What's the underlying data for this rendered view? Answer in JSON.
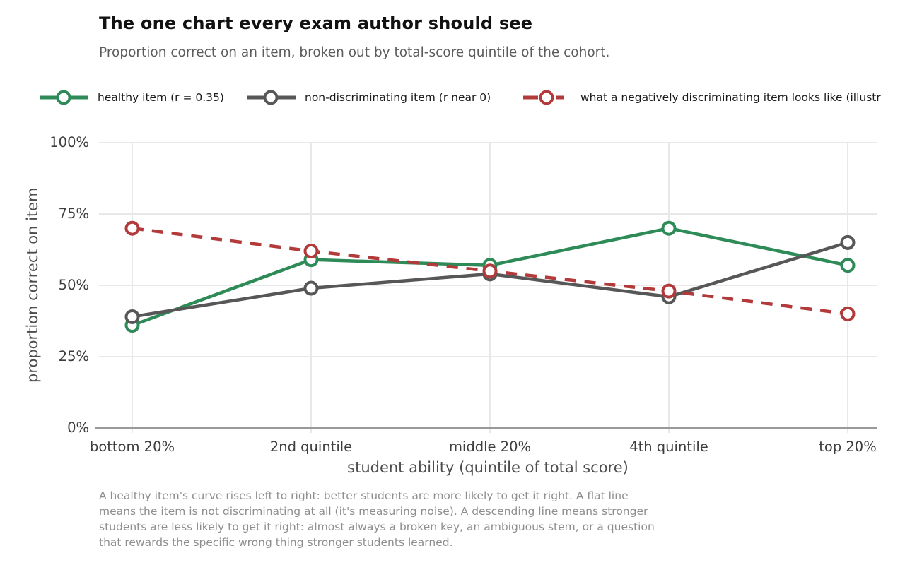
{
  "title": "The one chart every exam author should see",
  "subtitle": "Proportion correct on an item, broken out by total-score quintile of the cohort.",
  "caption": "A healthy item's curve rises left to right: better students are more likely to get it right. A flat line\nmeans the item is not discriminating at all (it's measuring noise). A descending line means stronger\nstudents are less likely to get it right: almost always a broken key, an ambiguous stem, or a question\nthat rewards the specific wrong thing stronger students learned.",
  "colors": {
    "healthy": "#2e8b57",
    "non_discriminating": "#575757",
    "negative": "#b23a3a",
    "gridline": "#e8e8e8",
    "axis_spine": "#999999",
    "tick_text": "#3d3d3d"
  },
  "chart_data": {
    "type": "line",
    "categories": [
      "bottom 20%",
      "2nd quintile",
      "middle 20%",
      "4th quintile",
      "top 20%"
    ],
    "series": [
      {
        "name": "healthy item (r = 0.35)",
        "color": "#2e8b57",
        "dash": "solid",
        "values": [
          36,
          59,
          57,
          70,
          57
        ]
      },
      {
        "name": "non-discriminating item (r near 0)",
        "color": "#575757",
        "dash": "solid",
        "values": [
          39,
          49,
          54,
          46,
          65
        ]
      },
      {
        "name": "what a negatively discriminating item looks like (illustr",
        "color": "#b23a3a",
        "dash": "dashed",
        "values": [
          70,
          62,
          55,
          48,
          40
        ]
      }
    ],
    "xlabel": "student ability (quintile of total score)",
    "ylabel": "proportion correct on item",
    "yticks": [
      {
        "label": "0%",
        "value": 0
      },
      {
        "label": "25%",
        "value": 25
      },
      {
        "label": "50%",
        "value": 50
      },
      {
        "label": "75%",
        "value": 75
      },
      {
        "label": "100%",
        "value": 100
      }
    ],
    "ylim": [
      0,
      100
    ],
    "grid": true,
    "legend_position": "top",
    "marker": "open-circle"
  }
}
